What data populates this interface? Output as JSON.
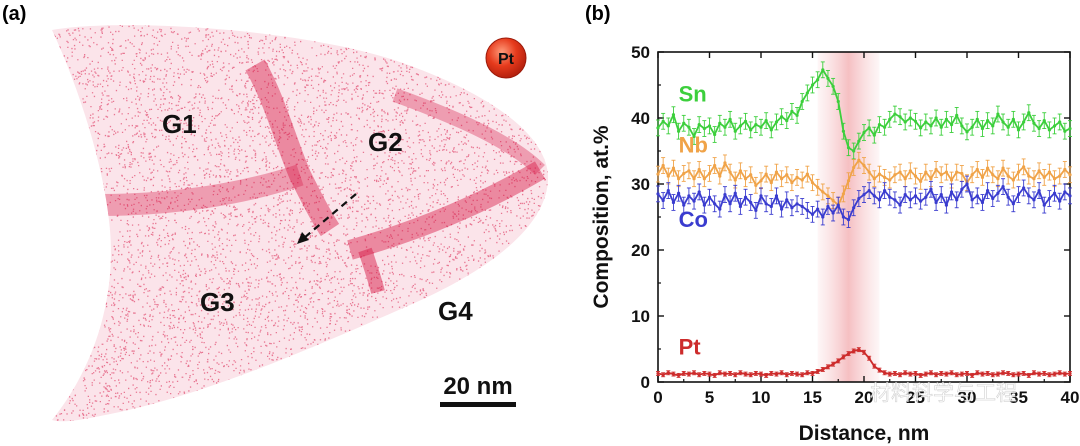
{
  "panel_a": {
    "label": "(a)",
    "grains": [
      "G1",
      "G2",
      "G3",
      "G4"
    ],
    "legend_element": "Pt",
    "scale_bar_text": "20 nm",
    "colors": {
      "atoms": "#d81b48",
      "marker": "#e0321b"
    }
  },
  "panel_b": {
    "label": "(b)"
  },
  "watermark": "材料科学与工程",
  "chart_data": {
    "type": "line",
    "xlabel": "Distance, nm",
    "ylabel": "Composition, at.%",
    "xlim": [
      0,
      40
    ],
    "ylim": [
      0,
      50
    ],
    "xticks": [
      0,
      5,
      10,
      15,
      20,
      25,
      30,
      35,
      40
    ],
    "yticks": [
      0,
      10,
      20,
      30,
      40,
      50
    ],
    "highlight_band": {
      "from": 15.5,
      "to": 21.5,
      "center": 19.5
    },
    "x": [
      0,
      0.5,
      1,
      1.5,
      2,
      2.5,
      3,
      3.5,
      4,
      4.5,
      5,
      5.5,
      6,
      6.5,
      7,
      7.5,
      8,
      8.5,
      9,
      9.5,
      10,
      10.5,
      11,
      11.5,
      12,
      12.5,
      13,
      13.5,
      14,
      14.5,
      15,
      15.5,
      16,
      16.5,
      17,
      17.5,
      18,
      18.5,
      19,
      19.5,
      20,
      20.5,
      21,
      21.5,
      22,
      22.5,
      23,
      23.5,
      24,
      24.5,
      25,
      25.5,
      26,
      26.5,
      27,
      27.5,
      28,
      28.5,
      29,
      29.5,
      30,
      30.5,
      31,
      31.5,
      32,
      32.5,
      33,
      33.5,
      34,
      34.5,
      35,
      35.5,
      36,
      36.5,
      37,
      37.5,
      38,
      38.5,
      39,
      39.5,
      40
    ],
    "series": [
      {
        "name": "Sn",
        "color": "#3ccf3c",
        "values": [
          38.5,
          39.5,
          38.8,
          40.5,
          38.0,
          39.2,
          38.6,
          37.2,
          39.0,
          38.4,
          38.8,
          37.5,
          39.2,
          38.6,
          39.8,
          38.0,
          38.8,
          39.5,
          38.2,
          39.0,
          38.6,
          39.6,
          38.2,
          39.4,
          40.2,
          39.6,
          41.0,
          40.4,
          42.5,
          43.8,
          45.0,
          45.8,
          47.3,
          46.0,
          44.8,
          42.5,
          38.0,
          35.5,
          35.0,
          36.5,
          37.8,
          38.5,
          37.4,
          39.0,
          38.6,
          39.8,
          40.6,
          40.2,
          39.4,
          40.0,
          39.5,
          38.5,
          39.4,
          38.8,
          40.0,
          38.6,
          39.8,
          39.0,
          40.4,
          38.8,
          37.9,
          38.6,
          39.8,
          38.4,
          39.6,
          38.8,
          40.6,
          39.4,
          38.6,
          39.8,
          38.2,
          39.4,
          40.8,
          39.2,
          38.4,
          39.6,
          38.2,
          38.8,
          39.4,
          38.0,
          38.4
        ],
        "error": 1.2
      },
      {
        "name": "Nb",
        "color": "#f0a348",
        "values": [
          31.5,
          32.8,
          31.2,
          32.4,
          30.8,
          31.6,
          32.0,
          30.8,
          32.2,
          30.8,
          31.6,
          32.8,
          31.2,
          33.2,
          31.8,
          30.6,
          32.0,
          30.8,
          31.4,
          29.8,
          30.5,
          31.5,
          30.2,
          31.8,
          30.8,
          31.4,
          30.2,
          31.0,
          30.6,
          31.5,
          30.2,
          29.5,
          28.8,
          28.2,
          27.5,
          26.8,
          28.5,
          30.5,
          32.5,
          33.6,
          32.8,
          31.8,
          30.8,
          31.5,
          31.0,
          30.6,
          31.4,
          31.8,
          30.8,
          32.0,
          31.2,
          30.4,
          31.8,
          30.8,
          32.2,
          31.4,
          31.8,
          30.6,
          31.8,
          31.6,
          30.2,
          31.4,
          32.2,
          31.0,
          32.4,
          31.4,
          30.8,
          32.4,
          31.2,
          30.6,
          31.8,
          32.6,
          31.2,
          30.8,
          32.0,
          31.0,
          31.8,
          30.8,
          31.2,
          32.2,
          31.4
        ],
        "error": 1.2
      },
      {
        "name": "Co",
        "color": "#3a3ccf",
        "values": [
          28.5,
          27.5,
          29.0,
          27.2,
          28.6,
          26.8,
          28.2,
          27.4,
          28.8,
          26.8,
          28.0,
          27.0,
          26.2,
          28.4,
          27.0,
          28.6,
          26.6,
          28.0,
          27.2,
          26.0,
          28.2,
          27.0,
          26.6,
          28.2,
          26.2,
          27.6,
          26.4,
          27.0,
          26.6,
          26.0,
          25.4,
          26.2,
          25.0,
          26.6,
          25.6,
          26.8,
          25.0,
          24.6,
          26.4,
          27.8,
          28.4,
          29.0,
          28.2,
          27.6,
          29.0,
          28.0,
          27.6,
          26.8,
          28.4,
          27.6,
          28.2,
          27.4,
          28.0,
          29.2,
          27.2,
          28.4,
          26.8,
          28.8,
          27.6,
          29.2,
          30.0,
          27.6,
          28.2,
          27.2,
          29.0,
          27.8,
          28.6,
          29.6,
          28.0,
          27.0,
          28.4,
          29.4,
          28.2,
          27.6,
          29.0,
          26.8,
          27.8,
          28.6,
          27.4,
          28.8,
          28.2
        ],
        "error": 1.2
      },
      {
        "name": "Pt",
        "color": "#cd2b2b",
        "values": [
          1.3,
          1.1,
          1.4,
          1.2,
          1.0,
          1.3,
          1.2,
          1.4,
          1.1,
          1.3,
          1.2,
          1.0,
          1.4,
          1.2,
          1.3,
          1.1,
          1.4,
          1.2,
          1.1,
          1.3,
          1.2,
          1.0,
          1.3,
          1.2,
          1.4,
          1.1,
          1.3,
          1.2,
          1.1,
          1.4,
          1.3,
          1.6,
          1.9,
          2.3,
          2.7,
          3.2,
          3.8,
          4.3,
          4.7,
          4.9,
          4.5,
          3.6,
          2.4,
          1.8,
          1.4,
          1.2,
          1.3,
          1.1,
          1.4,
          1.2,
          1.3,
          1.0,
          1.2,
          1.4,
          1.1,
          1.3,
          1.2,
          1.4,
          1.1,
          1.2,
          1.3,
          1.0,
          1.4,
          1.2,
          1.3,
          1.1,
          1.2,
          1.4,
          1.3,
          1.1,
          1.2,
          1.3,
          1.0,
          1.4,
          1.2,
          1.3,
          1.1,
          1.2,
          1.4,
          1.2,
          1.3
        ],
        "error": 0.3
      }
    ],
    "series_labels": [
      {
        "text": "Sn",
        "color": "#3ccf3c",
        "x": 2.0,
        "y": 42.5
      },
      {
        "text": "Nb",
        "color": "#f0a348",
        "x": 2.0,
        "y": 34.8
      },
      {
        "text": "Co",
        "color": "#3a3ccf",
        "x": 2.0,
        "y": 23.5
      },
      {
        "text": "Pt",
        "color": "#cd2b2b",
        "x": 2.0,
        "y": 4.2
      }
    ]
  }
}
